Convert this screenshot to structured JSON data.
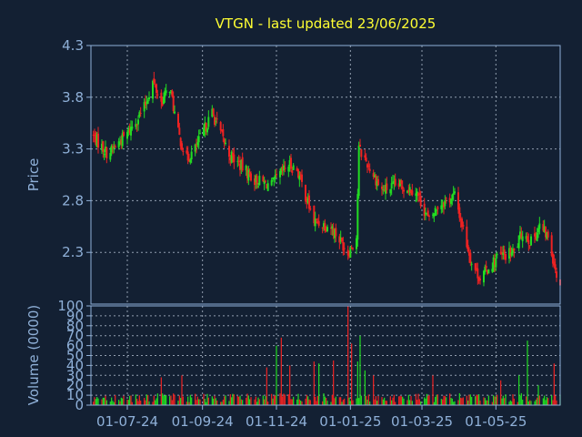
{
  "colors": {
    "background": "#132033",
    "axis": "#8fb0d8",
    "text": "#8fb0d8",
    "title": "#ffff33",
    "grid": "#c8d4e4",
    "up": "#22dd22",
    "down": "#ee2222"
  },
  "chart_data": [
    {
      "type": "candlestick",
      "title": "VTGN - last updated 23/06/2025",
      "ylabel": "Price",
      "ylim": [
        1.8,
        4.3
      ],
      "yticks": [
        "4.3",
        "3.8",
        "3.3",
        "2.8",
        "2.3"
      ],
      "xticks": [
        "01-07-24",
        "01-09-24",
        "01-11-24",
        "01-01-25",
        "01-03-25",
        "01-05-25"
      ],
      "grid": true,
      "anchors": [
        {
          "x": "01-06-24",
          "close": 3.45
        },
        {
          "x": "15-06-24",
          "close": 3.25
        },
        {
          "x": "01-07-24",
          "close": 3.45
        },
        {
          "x": "15-07-24",
          "close": 3.7
        },
        {
          "x": "22-07-24",
          "close": 3.95
        },
        {
          "x": "29-07-24",
          "close": 3.75
        },
        {
          "x": "05-08-24",
          "close": 3.9
        },
        {
          "x": "12-08-24",
          "close": 3.45
        },
        {
          "x": "19-08-24",
          "close": 3.2
        },
        {
          "x": "26-08-24",
          "close": 3.3
        },
        {
          "x": "09-09-24",
          "close": 3.65
        },
        {
          "x": "23-09-24",
          "close": 3.25
        },
        {
          "x": "14-10-24",
          "close": 3.0
        },
        {
          "x": "28-10-24",
          "close": 2.95
        },
        {
          "x": "11-11-24",
          "close": 3.15
        },
        {
          "x": "18-11-24",
          "close": 3.1
        },
        {
          "x": "02-12-24",
          "close": 2.6
        },
        {
          "x": "16-12-24",
          "close": 2.55
        },
        {
          "x": "30-12-24",
          "close": 2.3
        },
        {
          "x": "06-01-25",
          "close": 2.45
        },
        {
          "x": "08-01-25",
          "close": 3.3
        },
        {
          "x": "13-01-25",
          "close": 3.2
        },
        {
          "x": "27-01-25",
          "close": 2.9
        },
        {
          "x": "10-02-25",
          "close": 2.95
        },
        {
          "x": "24-02-25",
          "close": 2.9
        },
        {
          "x": "07-03-25",
          "close": 2.6
        },
        {
          "x": "14-03-25",
          "close": 2.75
        },
        {
          "x": "28-03-25",
          "close": 2.85
        },
        {
          "x": "11-04-25",
          "close": 2.2
        },
        {
          "x": "18-04-25",
          "close": 2.05
        },
        {
          "x": "02-05-25",
          "close": 2.25
        },
        {
          "x": "16-05-25",
          "close": 2.3
        },
        {
          "x": "23-05-25",
          "close": 2.5
        },
        {
          "x": "30-05-25",
          "close": 2.4
        },
        {
          "x": "06-06-25",
          "close": 2.55
        },
        {
          "x": "13-06-25",
          "close": 2.45
        },
        {
          "x": "20-06-25",
          "close": 2.1
        },
        {
          "x": "23-06-25",
          "close": 1.95
        }
      ]
    },
    {
      "type": "bar",
      "ylabel": "Volume (0000)",
      "ylim": [
        0,
        100
      ],
      "yticks": [
        "100",
        "90",
        "80",
        "70",
        "60",
        "50",
        "40",
        "30",
        "20",
        "10",
        "0"
      ],
      "xticks": [
        "01-07-24",
        "01-09-24",
        "01-11-24",
        "01-01-25",
        "01-03-25",
        "01-05-25"
      ],
      "grid": true,
      "typical_volume": 10,
      "spikes": [
        {
          "x": "15-06-24",
          "value": 18
        },
        {
          "x": "29-07-24",
          "value": 28
        },
        {
          "x": "15-08-24",
          "value": 30
        },
        {
          "x": "12-10-24",
          "value": 20
        },
        {
          "x": "24-10-24",
          "value": 38
        },
        {
          "x": "01-11-24",
          "value": 60
        },
        {
          "x": "05-11-24",
          "value": 68
        },
        {
          "x": "12-11-24",
          "value": 40
        },
        {
          "x": "16-11-24",
          "value": 30
        },
        {
          "x": "02-12-24",
          "value": 44
        },
        {
          "x": "06-12-24",
          "value": 42
        },
        {
          "x": "18-12-24",
          "value": 45
        },
        {
          "x": "22-12-24",
          "value": 55
        },
        {
          "x": "28-12-24",
          "value": 72
        },
        {
          "x": "30-12-24",
          "value": 100
        },
        {
          "x": "02-01-25",
          "value": 62
        },
        {
          "x": "07-01-25",
          "value": 44
        },
        {
          "x": "09-01-25",
          "value": 70
        },
        {
          "x": "13-01-25",
          "value": 35
        },
        {
          "x": "20-01-25",
          "value": 30
        },
        {
          "x": "01-02-25",
          "value": 28
        },
        {
          "x": "15-02-25",
          "value": 25
        },
        {
          "x": "01-03-25",
          "value": 22
        },
        {
          "x": "10-03-25",
          "value": 30
        },
        {
          "x": "22-03-25",
          "value": 40
        },
        {
          "x": "05-04-25",
          "value": 35
        },
        {
          "x": "19-04-25",
          "value": 28
        },
        {
          "x": "05-05-25",
          "value": 25
        },
        {
          "x": "20-05-25",
          "value": 30
        },
        {
          "x": "27-05-25",
          "value": 65
        },
        {
          "x": "05-06-25",
          "value": 20
        },
        {
          "x": "18-06-25",
          "value": 42
        },
        {
          "x": "21-06-25",
          "value": 22
        }
      ]
    }
  ]
}
